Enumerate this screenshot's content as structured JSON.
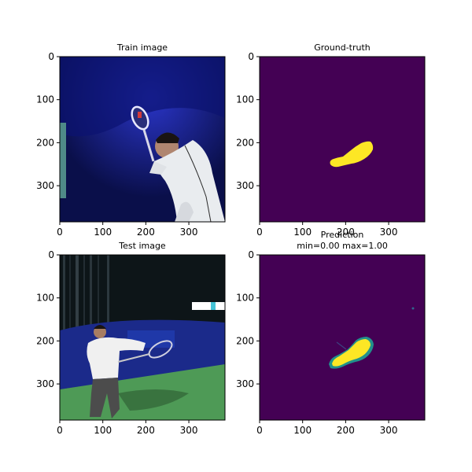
{
  "panels": {
    "train": {
      "title": "Train image"
    },
    "gt": {
      "title": "Ground-truth"
    },
    "test": {
      "title": "Test image"
    },
    "pred": {
      "title_line1": "Prediction",
      "title_line2": "min=0.00 max=1.00"
    }
  },
  "chart_data": [
    {
      "type": "image",
      "title": "Train image",
      "x_ticks": [
        0,
        100,
        200,
        300
      ],
      "y_ticks": [
        0,
        100,
        200,
        300
      ],
      "xlim": [
        0,
        384
      ],
      "ylim": [
        384,
        0
      ],
      "content": "photo of a tennis player in a white jacket swinging a racket against a dark blue backdrop"
    },
    {
      "type": "heatmap",
      "title": "Ground-truth",
      "x_ticks": [
        0,
        100,
        200,
        300
      ],
      "y_ticks": [
        0,
        100,
        200,
        300
      ],
      "xlim": [
        0,
        384
      ],
      "ylim": [
        384,
        0
      ],
      "colormap": "viridis",
      "background_value": 0,
      "mask_value": 1,
      "mask_shape": "racket-shaped blob",
      "mask_x_range": [
        165,
        270
      ],
      "mask_y_range": [
        178,
        255
      ]
    },
    {
      "type": "image",
      "title": "Test image",
      "x_ticks": [
        0,
        100,
        200,
        300
      ],
      "y_ticks": [
        0,
        100,
        200,
        300
      ],
      "xlim": [
        0,
        384
      ],
      "ylim": [
        384,
        0
      ],
      "content": "photo of a tennis player in a white shirt swinging a racket on a green court"
    },
    {
      "type": "heatmap",
      "title": "Prediction",
      "subtitle": "min=0.00 max=1.00",
      "x_ticks": [
        0,
        100,
        200,
        300
      ],
      "y_ticks": [
        0,
        100,
        200,
        300
      ],
      "xlim": [
        0,
        384
      ],
      "ylim": [
        384,
        0
      ],
      "colormap": "viridis",
      "min": 0.0,
      "max": 1.0,
      "mask_x_range": [
        165,
        272
      ],
      "mask_y_range": [
        188,
        262
      ]
    }
  ]
}
